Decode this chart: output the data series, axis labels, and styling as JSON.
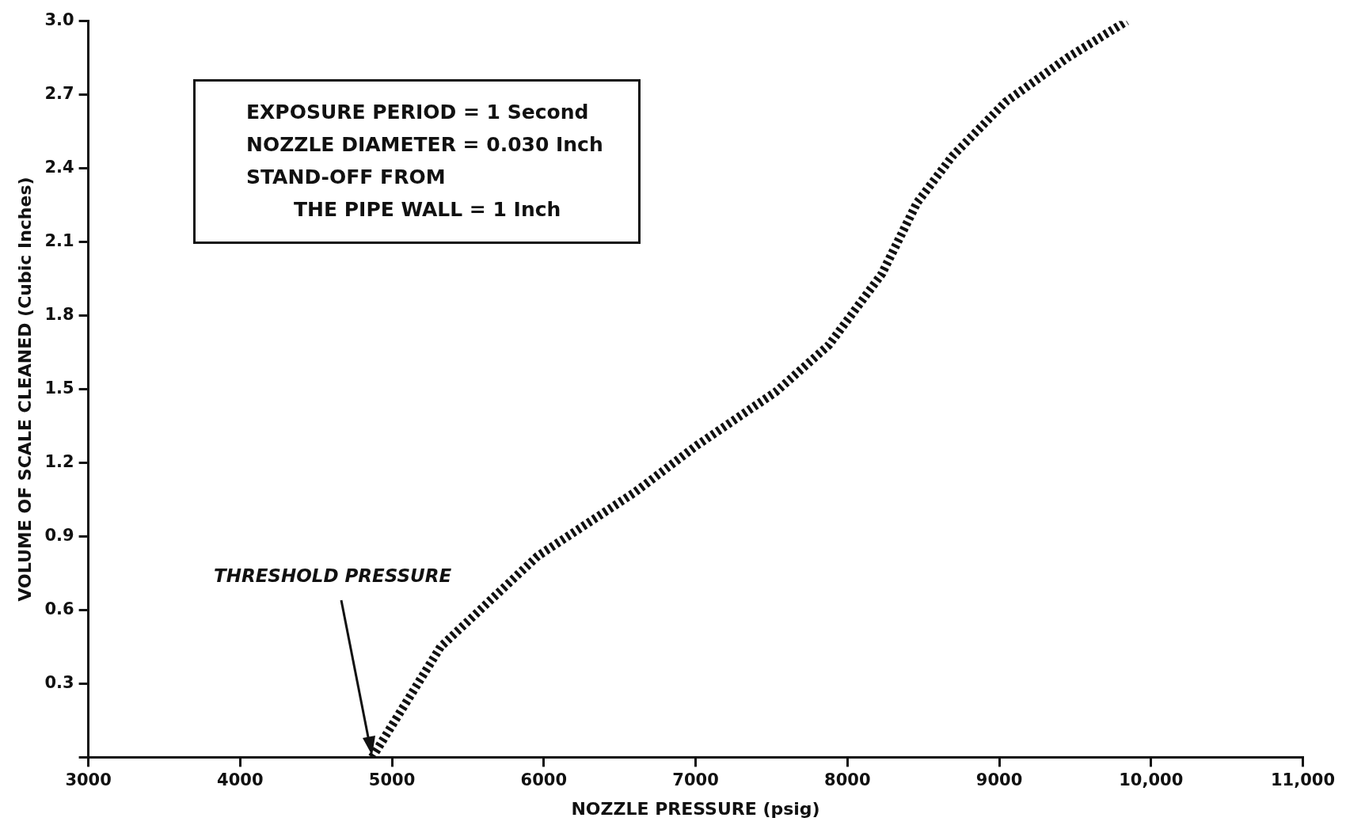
{
  "chart_data": {
    "type": "line",
    "xlabel": "NOZZLE PRESSURE (psig)",
    "ylabel": "VOLUME OF SCALE CLEANED (Cubic Inches)",
    "x": [
      4870,
      5320,
      5960,
      6600,
      7006,
      7530,
      7878,
      8227,
      8459,
      8692,
      9041,
      9448,
      9840
    ],
    "series": [
      {
        "color": "#111111",
        "line_style": "dashed",
        "values": [
          0.0,
          0.45,
          0.82,
          1.08,
          1.27,
          1.49,
          1.68,
          1.97,
          2.26,
          2.45,
          2.67,
          2.85,
          3.0
        ]
      }
    ],
    "xlim": [
      3000,
      11000
    ],
    "xticks": [
      3000,
      4000,
      5000,
      6000,
      7000,
      8000,
      9000,
      {
        "value": 10000,
        "label": "10,000"
      },
      {
        "value": 11000,
        "label": "11,000"
      }
    ],
    "ylim": [
      0,
      3.0
    ],
    "yticks": [
      {
        "value": 0,
        "label": null
      },
      0.3,
      0.6,
      0.9,
      1.2,
      1.5,
      1.8,
      2.1,
      2.4,
      2.7,
      {
        "value": 3.0,
        "label": "3.0"
      }
    ],
    "grid": false,
    "legend": false,
    "marker": "none",
    "annotations": [
      "THRESHOLD PRESSURE",
      "EXPOSURE PERIOD = 1 Second",
      "NOZZLE DIAMETER = 0.030 Inch",
      "STAND-OFF FROM",
      "THE PIPE WALL = 1 Inch"
    ]
  }
}
